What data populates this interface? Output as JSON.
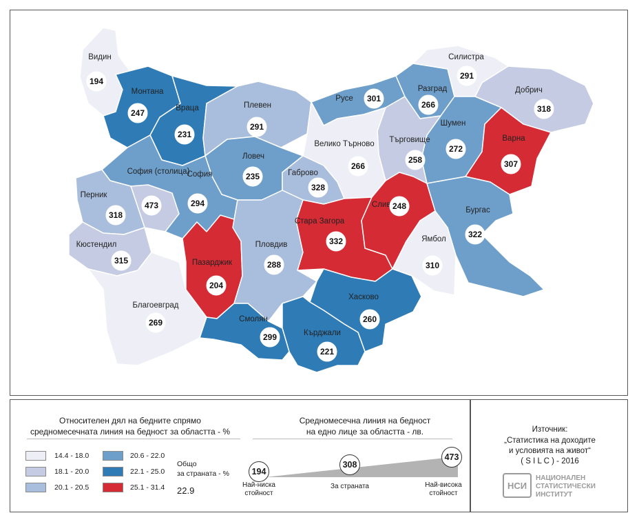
{
  "colors": {
    "c1": "#eeeff6",
    "c2": "#c5cbe2",
    "c3": "#a9bddc",
    "c4": "#6e9fcb",
    "c5": "#2f7bb5",
    "c6": "#d52b35"
  },
  "regions": [
    {
      "id": "vidin",
      "name": "Видин",
      "value": "194",
      "cls": "c1"
    },
    {
      "id": "montana",
      "name": "Монтана",
      "value": "247",
      "cls": "c5"
    },
    {
      "id": "vratsa",
      "name": "Враца",
      "value": "231",
      "cls": "c5"
    },
    {
      "id": "pleven",
      "name": "Плевен",
      "value": "291",
      "cls": "c3"
    },
    {
      "id": "ruse",
      "name": "Русе",
      "value": "301",
      "cls": "c4"
    },
    {
      "id": "razgrad",
      "name": "Разград",
      "value": "266",
      "cls": "c4"
    },
    {
      "id": "silistra",
      "name": "Силистра",
      "value": "291",
      "cls": "c1"
    },
    {
      "id": "dobrich",
      "name": "Добрич",
      "value": "318",
      "cls": "c2"
    },
    {
      "id": "shumen",
      "name": "Шумен",
      "value": "272",
      "cls": "c4"
    },
    {
      "id": "varna",
      "name": "Варна",
      "value": "307",
      "cls": "c6"
    },
    {
      "id": "targovishte",
      "name": "Търговище",
      "value": "258",
      "cls": "c2"
    },
    {
      "id": "vtarnovo",
      "name": "Велико Търново",
      "value": "266",
      "cls": "c1"
    },
    {
      "id": "lovech",
      "name": "Ловеч",
      "value": "235",
      "cls": "c4"
    },
    {
      "id": "gabrovo",
      "name": "Габрово",
      "value": "328",
      "cls": "c3"
    },
    {
      "id": "sofia_city",
      "name": "София (столица)",
      "value": "473",
      "cls": "c2"
    },
    {
      "id": "sofia",
      "name": "София",
      "value": "294",
      "cls": "c4"
    },
    {
      "id": "pernik",
      "name": "Перник",
      "value": "318",
      "cls": "c3"
    },
    {
      "id": "kyustendil",
      "name": "Кюстендил",
      "value": "315",
      "cls": "c2"
    },
    {
      "id": "blagoevgrad",
      "name": "Благоевград",
      "value": "269",
      "cls": "c1"
    },
    {
      "id": "pazardzhik",
      "name": "Пазарджик",
      "value": "204",
      "cls": "c6"
    },
    {
      "id": "plovdiv",
      "name": "Пловдив",
      "value": "288",
      "cls": "c3"
    },
    {
      "id": "stara_zagora",
      "name": "Стара Загора",
      "value": "332",
      "cls": "c6"
    },
    {
      "id": "sliven",
      "name": "Сливен",
      "value": "248",
      "cls": "c6"
    },
    {
      "id": "yambol",
      "name": "Ямбол",
      "value": "310",
      "cls": "c1"
    },
    {
      "id": "burgas",
      "name": "Бургас",
      "value": "322",
      "cls": "c4"
    },
    {
      "id": "haskovo",
      "name": "Хасково",
      "value": "260",
      "cls": "c5"
    },
    {
      "id": "smolyan",
      "name": "Смолян",
      "value": "299",
      "cls": "c5"
    },
    {
      "id": "kardzhali",
      "name": "Кърджали",
      "value": "221",
      "cls": "c5"
    }
  ],
  "legend": {
    "title_line1": "Относителен дял на бедните спрямо",
    "title_line2": "средномесечната линия на бедност за областта - %",
    "ranges": [
      {
        "label": "14.4  -  18.0",
        "cls": "c1"
      },
      {
        "label": "18.1  -  20.0",
        "cls": "c2"
      },
      {
        "label": "20.1  -  20.5",
        "cls": "c3"
      },
      {
        "label": "20.6  -  22.0",
        "cls": "c4"
      },
      {
        "label": "22.1  -  25.0",
        "cls": "c5"
      },
      {
        "label": "25.1  -  31.4",
        "cls": "c6"
      }
    ],
    "total_label_line1": "Общо",
    "total_label_line2": "за страната - %",
    "total_value": "22.9"
  },
  "poverty_line": {
    "title_line1": "Средномесечна линия на бедност",
    "title_line2": "на едно лице за областта - лв.",
    "min_value": "194",
    "country_value": "308",
    "max_value": "473",
    "min_label_line1": "Най-ниска",
    "min_label_line2": "стойност",
    "country_label": "За страната",
    "max_label_line1": "Най-висока",
    "max_label_line2": "стойност"
  },
  "source": {
    "line1": "Източник:",
    "line2": "„Статистика на доходите",
    "line3": "и условията на живот“",
    "line4": "( S I L C ) - 2016",
    "org_line1": "НАЦИОНАЛЕН",
    "org_line2": "СТАТИСТИЧЕСКИ",
    "org_line3": "ИНСТИТУТ",
    "logo_text": "НСИ"
  }
}
